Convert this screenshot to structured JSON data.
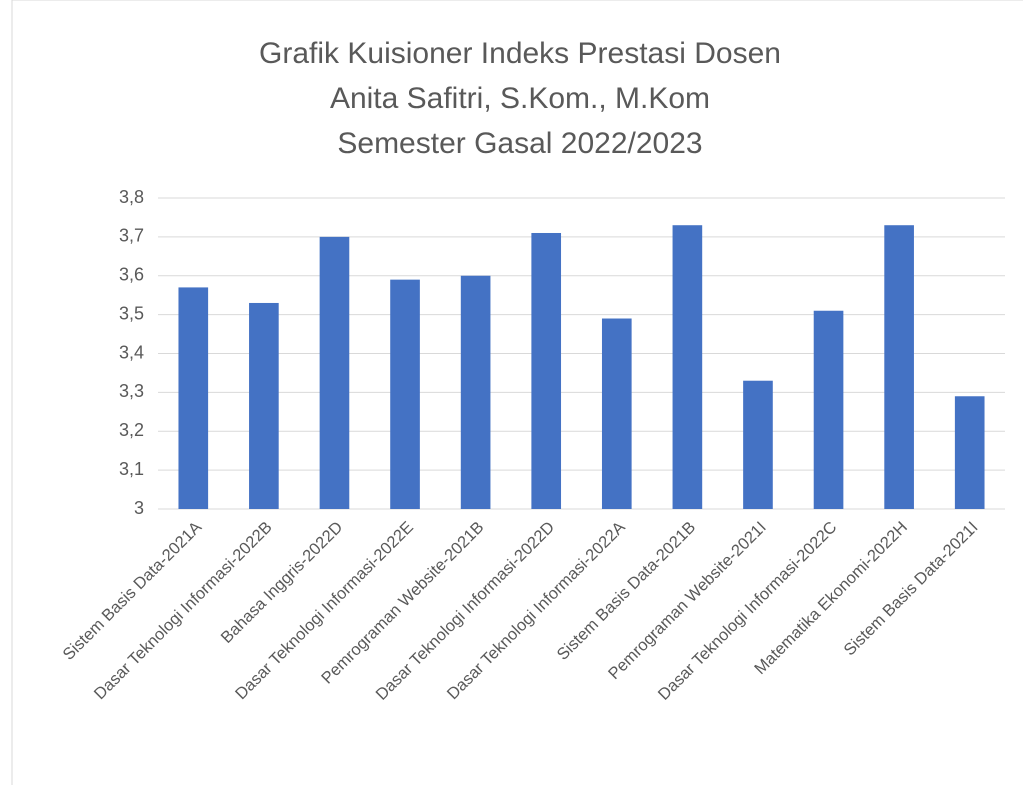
{
  "chart_data": {
    "type": "bar",
    "title": [
      "Grafik Kuisioner Indeks Prestasi Dosen",
      "Anita Safitri, S.Kom., M.Kom",
      "Semester Gasal 2022/2023"
    ],
    "categories": [
      "Sistem Basis Data-2021A",
      "Dasar Teknologi Informasi-2022B",
      "Bahasa Inggris-2022D",
      "Dasar Teknologi Informasi-2022E",
      "Pemrograman Website-2021B",
      "Dasar Teknologi Informasi-2022D",
      "Dasar Teknologi Informasi-2022A",
      "Sistem Basis Data-2021B",
      "Pemrograman Website-2021I",
      "Dasar Teknologi Informasi-2022C",
      "Matematika Ekonomi-2022H",
      "Sistem Basis Data-2021I"
    ],
    "values": [
      3.57,
      3.53,
      3.7,
      3.59,
      3.6,
      3.71,
      3.49,
      3.73,
      3.33,
      3.51,
      3.73,
      3.29
    ],
    "color": "#4472c4",
    "ylim": [
      3,
      3.8
    ],
    "yticks": [
      3,
      {
        "value": 3.1,
        "label": "3,1"
      },
      {
        "value": 3.2,
        "label": "3,2"
      },
      {
        "value": 3.3,
        "label": "3,3"
      },
      {
        "value": 3.4,
        "label": "3,4"
      },
      {
        "value": 3.5,
        "label": "3,5"
      },
      {
        "value": 3.6,
        "label": "3,6"
      },
      {
        "value": 3.7,
        "label": "3,7"
      },
      {
        "value": 3.8,
        "label": "3,8"
      }
    ],
    "grid": true
  }
}
